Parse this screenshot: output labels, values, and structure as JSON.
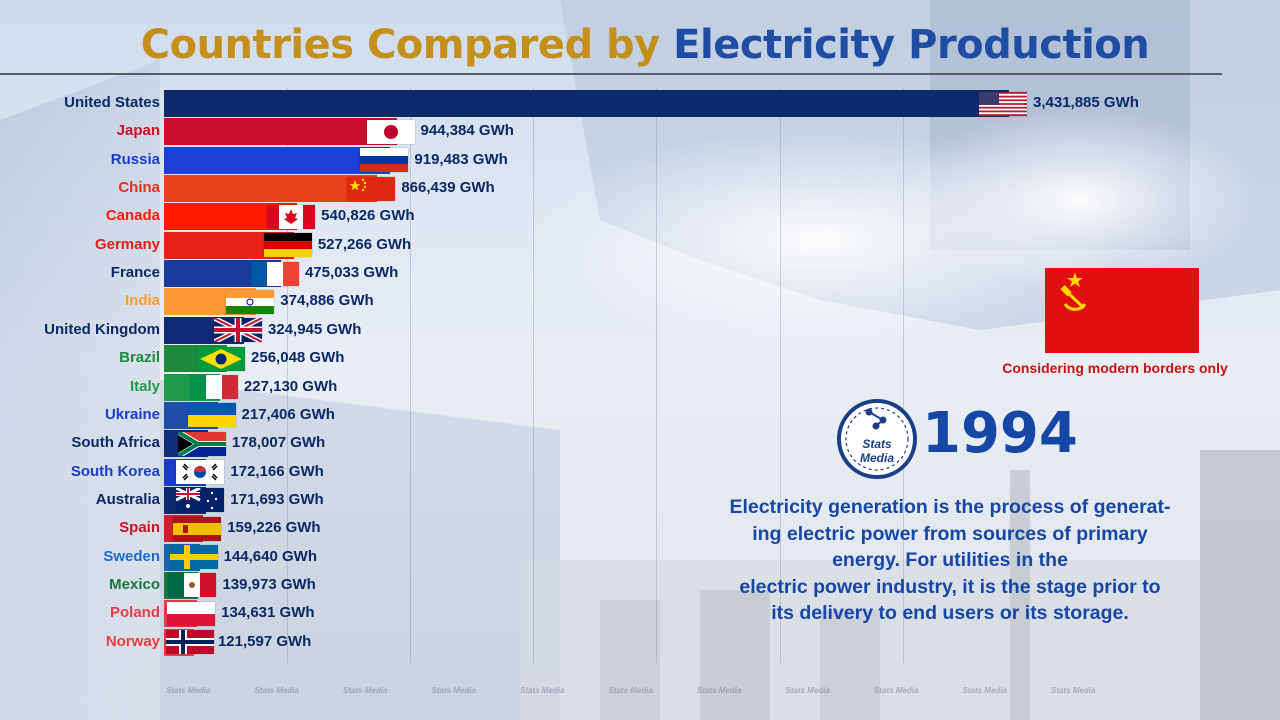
{
  "title": {
    "part1": "Countries Compared by",
    "part2": "Electricity Production"
  },
  "year": "1994",
  "logo_text": [
    "Stats",
    "Media"
  ],
  "note": "Considering modern borders only",
  "description_lines": [
    "Electricity generation is the process of generat-",
    "ing electric power from sources of primary",
    "energy. For utilities in the",
    "electric power industry, it is the stage prior to",
    "its delivery to end users or its storage."
  ],
  "watermark": "Stats Media",
  "colors": {
    "title_gold": "#c58f1c",
    "title_blue": "#1f4da3",
    "year_blue": "#1646a6",
    "note_red": "#cc1010"
  },
  "chart_data": {
    "type": "bar",
    "orientation": "horizontal",
    "unit": "GWh",
    "categories": [
      "United States",
      "Japan",
      "Russia",
      "China",
      "Canada",
      "Germany",
      "France",
      "India",
      "United Kingdom",
      "Brazil",
      "Italy",
      "Ukraine",
      "South Africa",
      "South Korea",
      "Australia",
      "Spain",
      "Sweden",
      "Mexico",
      "Poland",
      "Norway"
    ],
    "values": [
      3431885,
      944384,
      919483,
      866439,
      540826,
      527266,
      475033,
      374886,
      324945,
      256048,
      227130,
      217406,
      178007,
      172166,
      171693,
      159226,
      144640,
      139973,
      134631,
      121597
    ],
    "value_labels": [
      "3,431,885 GWh",
      "944,384 GWh",
      "919,483 GWh",
      "866,439 GWh",
      "540,826 GWh",
      "527,266 GWh",
      "475,033 GWh",
      "374,886 GWh",
      "324,945 GWh",
      "256,048 GWh",
      "227,130 GWh",
      "217,406 GWh",
      "178,007 GWh",
      "172,166 GWh",
      "171,693 GWh",
      "159,226 GWh",
      "144,640 GWh",
      "139,973 GWh",
      "134,631 GWh",
      "121,597 GWh"
    ],
    "bar_colors": [
      "#0f2a6b",
      "#c8102e",
      "#1b3fd8",
      "#e8421c",
      "#ff1a00",
      "#e8221a",
      "#1a3b9e",
      "#ff9933",
      "#0e2a74",
      "#1e8a3c",
      "#1f9a48",
      "#1e4eaa",
      "#0f2f7a",
      "#1a3cc8",
      "#0f2a6b",
      "#cc1e2c",
      "#1f62b4",
      "#137a43",
      "#e83a4a",
      "#ef3c3c"
    ],
    "label_colors": [
      "#0b2866",
      "#d01020",
      "#1a3cc8",
      "#e0301a",
      "#ff1a00",
      "#e02018",
      "#0b2866",
      "#ff9d2e",
      "#0b2866",
      "#1e8a3c",
      "#1f9a48",
      "#1a3cc8",
      "#0b2866",
      "#1a3cc8",
      "#0b2866",
      "#d01020",
      "#1a6cc8",
      "#137a43",
      "#e83a4a",
      "#ef3c3c"
    ],
    "flags": [
      "us",
      "jp",
      "ru",
      "cn",
      "ca",
      "de",
      "fr",
      "in",
      "gb",
      "br",
      "it",
      "ua",
      "za",
      "kr",
      "au",
      "es",
      "se",
      "mx",
      "pl",
      "no"
    ],
    "legend": "none",
    "grid": true
  }
}
